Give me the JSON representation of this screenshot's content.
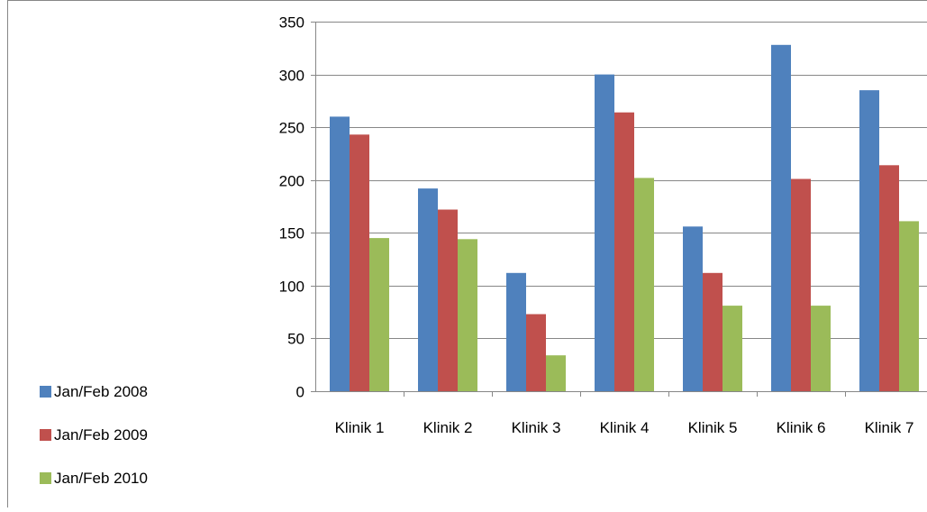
{
  "chart_data": {
    "type": "bar",
    "title": "",
    "xlabel": "",
    "ylabel": "",
    "categories": [
      "Klinik 1",
      "Klinik 2",
      "Klinik 3",
      "Klinik 4",
      "Klinik 5",
      "Klinik 6",
      "Klinik 7"
    ],
    "series": [
      {
        "name": "Jan/Feb 2008",
        "color": "#4F81BD",
        "values": [
          260,
          192,
          112,
          300,
          156,
          328,
          285
        ]
      },
      {
        "name": "Jan/Feb 2009",
        "color": "#C0504D",
        "values": [
          243,
          172,
          73,
          264,
          112,
          201,
          214
        ]
      },
      {
        "name": "Jan/Feb 2010",
        "color": "#9BBB59",
        "values": [
          145,
          144,
          34,
          202,
          81,
          81,
          161
        ]
      }
    ],
    "ylim": [
      0,
      350
    ],
    "yticks": [
      0,
      50,
      100,
      150,
      200,
      250,
      300,
      350
    ],
    "grid": true,
    "legend_position": "bottom-left"
  }
}
